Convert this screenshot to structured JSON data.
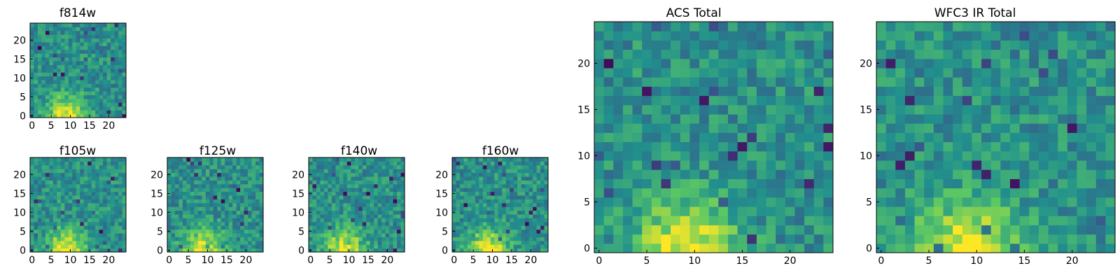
{
  "chart_data": [
    {
      "type": "heatmap",
      "title": "f814w",
      "xlim": [
        0,
        25
      ],
      "ylim": [
        0,
        25
      ],
      "xticks": [
        "0",
        "5",
        "10",
        "15",
        "20"
      ],
      "yticks": [
        "0",
        "5",
        "10",
        "15",
        "20"
      ],
      "grid_size": 25,
      "peak": {
        "x": 9,
        "y": 0
      }
    },
    {
      "type": "heatmap",
      "title": "f105w",
      "xlim": [
        0,
        25
      ],
      "ylim": [
        0,
        25
      ],
      "xticks": [
        "0",
        "5",
        "10",
        "15",
        "20"
      ],
      "yticks": [
        "0",
        "5",
        "10",
        "15",
        "20"
      ],
      "grid_size": 25,
      "peak": {
        "x": 9,
        "y": 0
      }
    },
    {
      "type": "heatmap",
      "title": "f125w",
      "xlim": [
        0,
        25
      ],
      "ylim": [
        0,
        25
      ],
      "xticks": [
        "0",
        "5",
        "10",
        "15",
        "20"
      ],
      "yticks": [
        "0",
        "5",
        "10",
        "15",
        "20"
      ],
      "grid_size": 25,
      "peak": {
        "x": 9,
        "y": 0
      }
    },
    {
      "type": "heatmap",
      "title": "f140w",
      "xlim": [
        0,
        25
      ],
      "ylim": [
        0,
        25
      ],
      "xticks": [
        "0",
        "5",
        "10",
        "15",
        "20"
      ],
      "yticks": [
        "0",
        "5",
        "10",
        "15",
        "20"
      ],
      "grid_size": 25,
      "peak": {
        "x": 9,
        "y": 0
      }
    },
    {
      "type": "heatmap",
      "title": "f160w",
      "xlim": [
        0,
        25
      ],
      "ylim": [
        0,
        25
      ],
      "xticks": [
        "0",
        "5",
        "10",
        "15",
        "20"
      ],
      "yticks": [
        "0",
        "5",
        "10",
        "15",
        "20"
      ],
      "grid_size": 25,
      "peak": {
        "x": 9,
        "y": 0
      }
    },
    {
      "type": "heatmap",
      "title": "ACS Total",
      "xlim": [
        0,
        25
      ],
      "ylim": [
        0,
        25
      ],
      "xticks": [
        "0",
        "5",
        "10",
        "15",
        "20"
      ],
      "yticks": [
        "0",
        "5",
        "10",
        "15",
        "20"
      ],
      "grid_size": 25,
      "peak": {
        "x": 9,
        "y": 0
      }
    },
    {
      "type": "heatmap",
      "title": "WFC3 IR Total",
      "xlim": [
        0,
        25
      ],
      "ylim": [
        0,
        25
      ],
      "xticks": [
        "0",
        "5",
        "10",
        "15",
        "20"
      ],
      "yticks": [
        "0",
        "5",
        "10",
        "15",
        "20"
      ],
      "grid_size": 25,
      "peak": {
        "x": 9,
        "y": 0
      }
    }
  ],
  "colormap": [
    "#440154",
    "#3b528b",
    "#21908d",
    "#5dc963",
    "#fde725"
  ]
}
